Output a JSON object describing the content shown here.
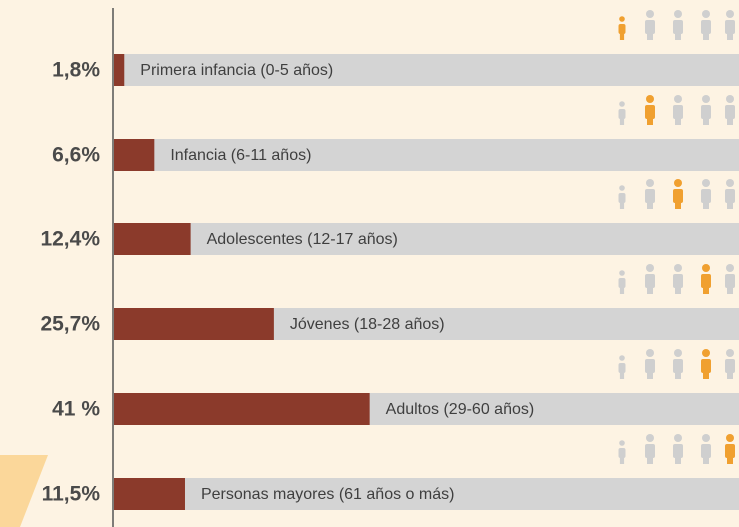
{
  "chart_data": {
    "type": "bar",
    "categories": [
      "Primera infancia (0-5 años)",
      "Infancia (6-11 años)",
      "Adolescentes (12-17 años)",
      "Jóvenes (18-28 años)",
      "Adultos (29-60 años)",
      "Personas mayores (61 años o más)"
    ],
    "values": [
      1.8,
      6.6,
      12.4,
      25.7,
      41,
      11.5
    ],
    "value_labels": [
      "1,8%",
      "6,6%",
      "12,4%",
      "25,7%",
      "41 %",
      "11,5%"
    ],
    "color": "#8b3a2b",
    "xlim": [
      0,
      100
    ]
  }
}
